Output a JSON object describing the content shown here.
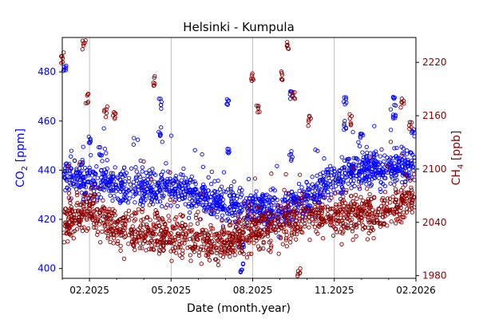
{
  "chart_data": {
    "type": "scatter",
    "title": "Helsinki - Kumpula",
    "xlabel": "Date (month.year)",
    "x_ticks": [
      "02.2025",
      "05.2025",
      "08.2025",
      "11.2025",
      "02.2026"
    ],
    "x_range_months": [
      0.0,
      13.0
    ],
    "x_tick_months": [
      1,
      4,
      7,
      10,
      13
    ],
    "grid_x": true,
    "left_axis": {
      "label_main": "CO",
      "label_sub": "2",
      "label_unit": " [ppm]",
      "color": "#0000ff",
      "ylim": [
        396,
        494
      ],
      "ticks": [
        400,
        420,
        440,
        460,
        480
      ]
    },
    "right_axis": {
      "label_main": "CH",
      "label_sub": "4",
      "label_unit": " [ppb]",
      "color": "#8b0000",
      "ylim": [
        1977,
        2248
      ],
      "ticks": [
        1980,
        2040,
        2100,
        2160,
        2220
      ]
    },
    "series": [
      {
        "name": "CO2",
        "axis": "left",
        "color": "#0000ff",
        "marker": "open-circle",
        "baseline": [
          [
            0,
            438
          ],
          [
            1,
            436
          ],
          [
            2,
            434
          ],
          [
            3,
            433
          ],
          [
            4,
            433
          ],
          [
            5,
            430
          ],
          [
            6,
            426
          ],
          [
            7,
            425
          ],
          [
            8,
            424
          ],
          [
            9,
            428
          ],
          [
            10,
            437
          ],
          [
            11,
            440
          ],
          [
            12,
            441
          ],
          [
            13,
            442
          ]
        ],
        "highlights": [
          [
            0.1,
            482
          ],
          [
            1.0,
            452
          ],
          [
            1.4,
            448
          ],
          [
            3.6,
            456
          ],
          [
            3.6,
            467
          ],
          [
            6.1,
            449
          ],
          [
            6.1,
            468
          ],
          [
            6.6,
            409
          ],
          [
            6.6,
            400
          ],
          [
            7.4,
            426
          ],
          [
            8.4,
            446
          ],
          [
            8.4,
            470
          ],
          [
            10.4,
            458
          ],
          [
            10.4,
            468
          ],
          [
            11.0,
            455
          ],
          [
            12.2,
            462
          ],
          [
            12.2,
            468
          ],
          [
            12.9,
            455
          ]
        ]
      },
      {
        "name": "CH4",
        "axis": "right",
        "color": "#8b0000",
        "marker": "open-circle",
        "baseline": [
          [
            0,
            2040
          ],
          [
            1,
            2055
          ],
          [
            2,
            2035
          ],
          [
            3,
            2030
          ],
          [
            4,
            2025
          ],
          [
            5,
            2020
          ],
          [
            6,
            2015
          ],
          [
            7,
            2030
          ],
          [
            8,
            2040
          ],
          [
            9,
            2045
          ],
          [
            10,
            2048
          ],
          [
            11,
            2050
          ],
          [
            12,
            2055
          ],
          [
            13,
            2070
          ]
        ],
        "highlights": [
          [
            0.0,
            2225
          ],
          [
            0.8,
            2240
          ],
          [
            0.9,
            2180
          ],
          [
            1.6,
            2165
          ],
          [
            1.9,
            2160
          ],
          [
            3.4,
            2200
          ],
          [
            7.0,
            2205
          ],
          [
            7.2,
            2165
          ],
          [
            8.1,
            2205
          ],
          [
            8.3,
            2240
          ],
          [
            8.5,
            2185
          ],
          [
            8.7,
            1985
          ],
          [
            9.1,
            2155
          ],
          [
            10.6,
            2155
          ],
          [
            12.5,
            2175
          ],
          [
            12.8,
            2150
          ]
        ]
      }
    ]
  }
}
